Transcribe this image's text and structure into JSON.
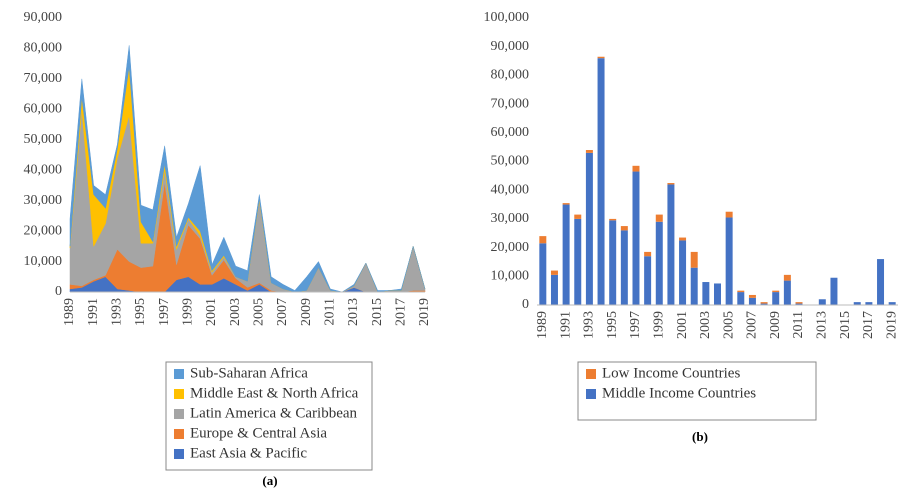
{
  "chart_data": [
    {
      "type": "stacked_area",
      "caption": "(a)",
      "categories": [
        "1989",
        null,
        "1991",
        null,
        "1993",
        null,
        "1995",
        null,
        "1997",
        null,
        "1999",
        null,
        "2001",
        null,
        "2003",
        null,
        "2005",
        null,
        "2007",
        null,
        "2009",
        null,
        "2011",
        null,
        "2013",
        null,
        "2015",
        null,
        "2017",
        null,
        "2019"
      ],
      "series": [
        {
          "name": "East Asia & Pacific",
          "color": "#4472c4",
          "values": [
            1000,
            1500,
            3500,
            5000,
            1000,
            500,
            0,
            0,
            0,
            4000,
            5000,
            2500,
            2500,
            4500,
            2500,
            500,
            2500,
            0,
            0,
            0,
            0,
            0,
            0,
            0,
            1500,
            0,
            0,
            0,
            0,
            0,
            0
          ]
        },
        {
          "name": "Europe & Central Asia",
          "color": "#ed7d31",
          "values": [
            1500,
            500,
            500,
            500,
            13000,
            9500,
            8000,
            8500,
            36000,
            5000,
            17000,
            15000,
            3000,
            6000,
            2000,
            1000,
            500,
            500,
            0,
            0,
            0,
            0,
            0,
            0,
            0,
            0,
            0,
            0,
            0,
            500,
            500
          ]
        },
        {
          "name": "Latin America & Caribbean",
          "color": "#a5a5a5",
          "values": [
            12000,
            58000,
            11000,
            17000,
            30000,
            48000,
            8000,
            7500,
            4000,
            5000,
            2000,
            1000,
            1000,
            1000,
            500,
            2000,
            27000,
            2500,
            1000,
            0,
            500,
            8000,
            500,
            0,
            500,
            9500,
            0,
            500,
            500,
            14500,
            500
          ]
        },
        {
          "name": "Middle East & North Africa",
          "color": "#ffc000",
          "values": [
            500,
            4000,
            17000,
            5000,
            3000,
            16000,
            7000,
            500,
            2000,
            1000,
            500,
            1500,
            500,
            500,
            0,
            0,
            500,
            0,
            0,
            0,
            0,
            0,
            0,
            0,
            0,
            0,
            0,
            0,
            0,
            0,
            0
          ]
        },
        {
          "name": "Sub-Saharan Africa",
          "color": "#5b9bd5",
          "values": [
            9000,
            6000,
            3000,
            4500,
            1500,
            7000,
            5500,
            10500,
            6000,
            3000,
            4500,
            21500,
            2000,
            6000,
            3500,
            3500,
            1500,
            2000,
            1500,
            500,
            4500,
            2000,
            500,
            0,
            500,
            0,
            500,
            0,
            500,
            0,
            0
          ]
        }
      ],
      "ylim": [
        0,
        90000
      ],
      "yticks": [
        0,
        {
          "value": 10000,
          "label": "10,000"
        },
        {
          "value": 20000,
          "label": "20,000"
        },
        {
          "value": 30000,
          "label": "30,000"
        },
        {
          "value": 40000,
          "label": "40,000"
        },
        {
          "value": 50000,
          "label": "50,000"
        },
        {
          "value": 60000,
          "label": "60,000"
        },
        {
          "value": 70000,
          "label": "70,000"
        },
        {
          "value": 80000,
          "label": "80,000"
        },
        {
          "value": 90000,
          "label": "90,000"
        }
      ],
      "grid": false,
      "legend": "bottom"
    },
    {
      "type": "stacked_bar",
      "caption": "(b)",
      "categories": [
        "1989",
        null,
        "1991",
        null,
        "1993",
        null,
        "1995",
        null,
        "1997",
        null,
        "1999",
        null,
        "2001",
        null,
        "2003",
        null,
        "2005",
        null,
        "2007",
        null,
        "2009",
        null,
        "2011",
        null,
        "2013",
        null,
        "2015",
        null,
        "2017",
        null,
        "2019"
      ],
      "series": [
        {
          "name": "Middle Income Countries",
          "color": "#4472c4",
          "values": [
            21500,
            10500,
            35000,
            30000,
            53000,
            86000,
            29500,
            26000,
            46500,
            17000,
            29000,
            42000,
            22500,
            13000,
            8000,
            7500,
            30500,
            4500,
            2500,
            500,
            4500,
            8500,
            500,
            0,
            2000,
            9500,
            0,
            1000,
            1000,
            16000,
            1000
          ]
        },
        {
          "name": "Low Income Countries",
          "color": "#ed7d31",
          "values": [
            2500,
            1500,
            500,
            1500,
            1000,
            500,
            500,
            1500,
            2000,
            1500,
            2500,
            500,
            1000,
            5500,
            0,
            0,
            2000,
            500,
            1000,
            500,
            500,
            2000,
            500,
            0,
            0,
            0,
            0,
            0,
            0,
            0,
            0
          ]
        }
      ],
      "ylim": [
        0,
        100000
      ],
      "yticks": [
        0,
        {
          "value": 10000,
          "label": "10,000"
        },
        {
          "value": 20000,
          "label": "20,000"
        },
        {
          "value": 30000,
          "label": "30,000"
        },
        {
          "value": 40000,
          "label": "40,000"
        },
        {
          "value": 50000,
          "label": "50,000"
        },
        {
          "value": 60000,
          "label": "60,000"
        },
        {
          "value": 70000,
          "label": "70,000"
        },
        {
          "value": 80000,
          "label": "80,000"
        },
        {
          "value": 90000,
          "label": "90,000"
        },
        {
          "value": 100000,
          "label": "100,000"
        }
      ],
      "grid": false,
      "legend": "bottom"
    }
  ]
}
